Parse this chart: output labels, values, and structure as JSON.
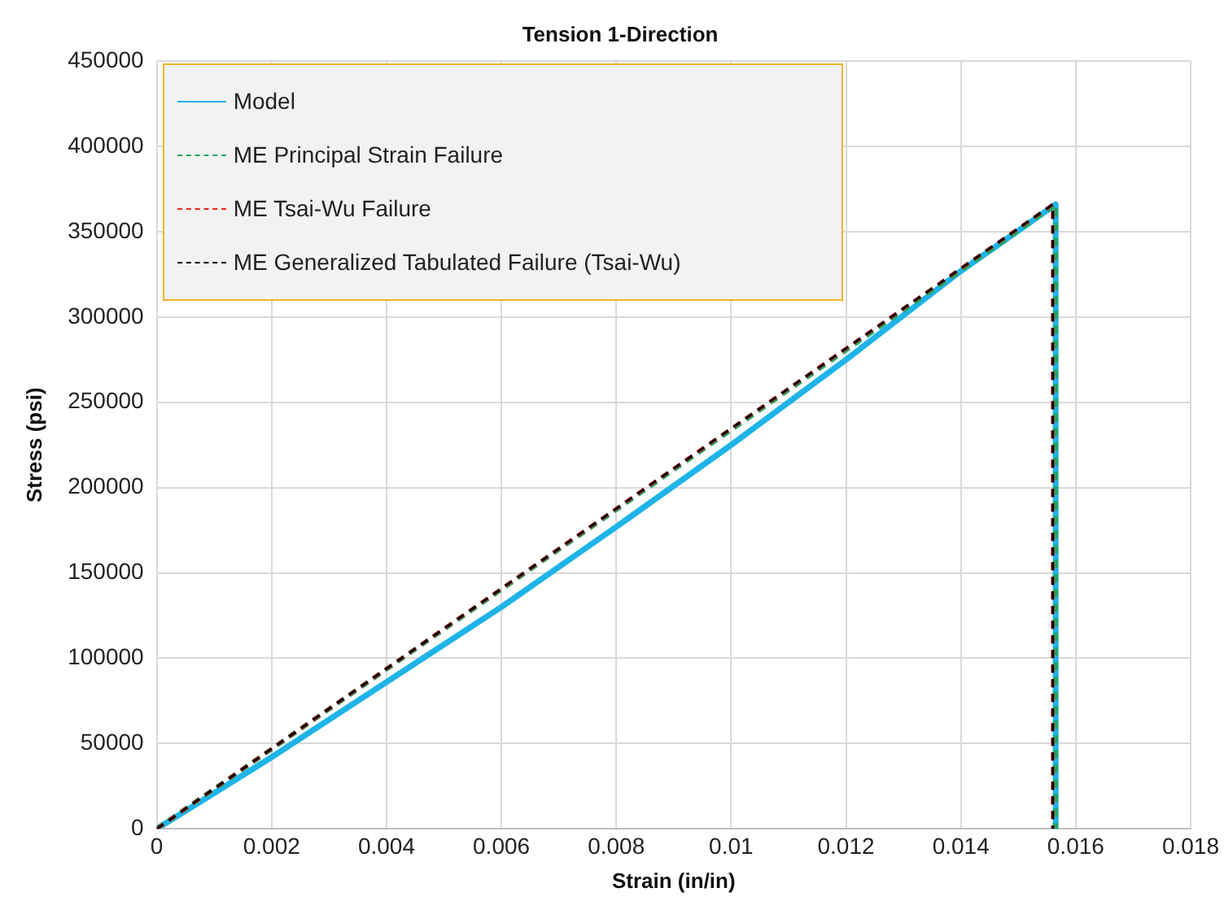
{
  "chart_data": {
    "type": "line",
    "title": "Tension 1-Direction",
    "xlabel": "Strain (in/in)",
    "ylabel": "Stress (psi)",
    "xlim": [
      0,
      0.018
    ],
    "xticks": [
      0,
      0.002,
      0.004,
      0.006,
      0.008,
      0.01,
      0.012,
      0.014,
      0.016,
      0.018
    ],
    "ylim": [
      0,
      450000
    ],
    "yticks": [
      0,
      50000,
      100000,
      150000,
      200000,
      250000,
      300000,
      350000,
      400000,
      450000
    ],
    "grid": true,
    "legend": "top left",
    "marker": "none",
    "series": [
      {
        "name": "Model",
        "color": "#1eb4e8",
        "line_style": "solid",
        "x": [
          0,
          0.002,
          0.004,
          0.006,
          0.008,
          0.01,
          0.012,
          0.014,
          0.01565,
          0.01565
        ],
        "values": [
          0,
          42000,
          86000,
          130000,
          177000,
          225000,
          275000,
          327000,
          366000,
          0
        ]
      },
      {
        "name": "ME Principal Strain Failure",
        "color": "#1fa760",
        "line_style": "dashed",
        "x": [
          0,
          0.01565,
          0.01565
        ],
        "values": [
          0,
          366000,
          0
        ]
      },
      {
        "name": "ME Tsai-Wu Failure",
        "color": "#e8231e",
        "line_style": "dashed",
        "x": [
          0,
          0.0156,
          0.0156
        ],
        "values": [
          0,
          366000,
          0
        ]
      },
      {
        "name": "ME Generalized Tabulated Failure (Tsai-Wu)",
        "color": "#000000",
        "line_style": "dashed",
        "x": [
          0,
          0.0156,
          0.0156
        ],
        "values": [
          0,
          366000,
          0
        ]
      }
    ]
  }
}
